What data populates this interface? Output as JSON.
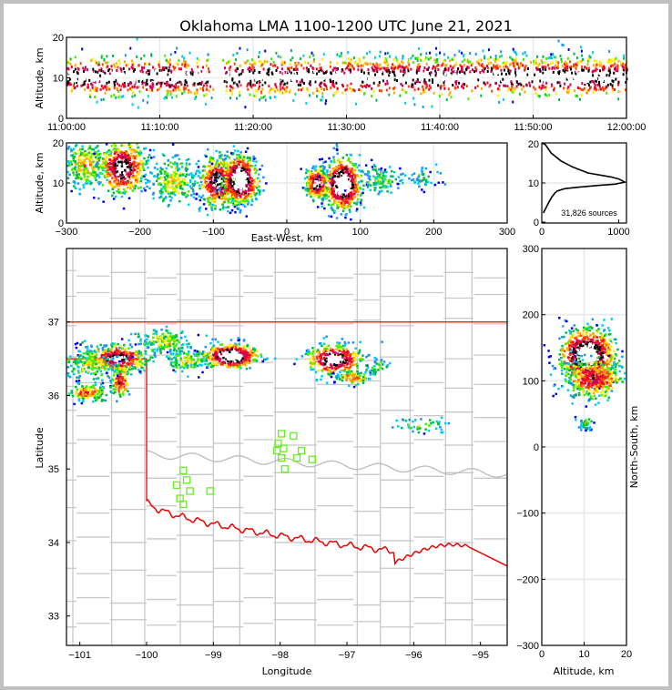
{
  "title": "Oklahoma LMA 1100-1200 UTC June 21, 2021",
  "colors": {
    "border": "#ee0000",
    "county": "#c8c8c8",
    "station": "#66ee22",
    "grid": "#e8e8e8"
  },
  "chart_data": [
    {
      "id": "time-height",
      "type": "scatter",
      "xlabel": "",
      "ylabel": "Altitude, km",
      "x_ticks": [
        "11:00:00",
        "11:10:00",
        "11:20:00",
        "11:30:00",
        "11:40:00",
        "11:50:00",
        "12:00:00"
      ],
      "xlim_minutes": [
        0,
        60
      ],
      "ylim": [
        0,
        20
      ],
      "y_ticks": [
        "0",
        "10",
        "20"
      ],
      "note": "Source density by time; main band near 10 km altitude, gap near 11:15-11:17"
    },
    {
      "id": "ew-altitude",
      "type": "scatter",
      "xlabel": "East-West, km",
      "ylabel": "Altitude, km",
      "xlim": [
        -300,
        300
      ],
      "ylim": [
        0,
        20
      ],
      "x_ticks": [
        "−300",
        "−200",
        "−100",
        "0",
        "100",
        "200",
        "300"
      ],
      "y_ticks": [
        "0",
        "10",
        "20"
      ],
      "clusters": [
        {
          "x": -275,
          "y": 15,
          "sx": 14,
          "sy": 3,
          "n": 260,
          "peak": 0.4
        },
        {
          "x": -225,
          "y": 14,
          "sx": 16,
          "sy": 3.2,
          "n": 520,
          "peak": 0.8
        },
        {
          "x": -155,
          "y": 11,
          "sx": 16,
          "sy": 3,
          "n": 260,
          "peak": 0.3
        },
        {
          "x": -95,
          "y": 10.5,
          "sx": 13,
          "sy": 3,
          "n": 500,
          "peak": 0.8
        },
        {
          "x": -65,
          "y": 11,
          "sx": 12,
          "sy": 3,
          "n": 600,
          "peak": 1
        },
        {
          "x": 40,
          "y": 10,
          "sx": 8,
          "sy": 2,
          "n": 300,
          "peak": 0.8
        },
        {
          "x": 75,
          "y": 10,
          "sx": 12,
          "sy": 3.2,
          "n": 600,
          "peak": 1
        },
        {
          "x": 125,
          "y": 11,
          "sx": 15,
          "sy": 1.5,
          "n": 120,
          "peak": 0.2
        },
        {
          "x": 180,
          "y": 11.5,
          "sx": 15,
          "sy": 1.2,
          "n": 50,
          "peak": 0.1
        }
      ]
    },
    {
      "id": "altitude-histogram",
      "type": "line",
      "xlim": [
        0,
        1100
      ],
      "ylim": [
        0,
        20
      ],
      "x_ticks": [
        "0",
        "1000"
      ],
      "y_ticks": [
        "0",
        "10",
        "20"
      ],
      "annotation": "31,826 sources",
      "x": [
        20,
        60,
        100,
        130,
        150,
        170,
        200,
        300,
        500,
        750,
        950,
        1080,
        1000,
        900,
        600,
        400,
        250,
        120,
        50,
        10
      ],
      "y": [
        2.5,
        4,
        5.5,
        6.5,
        7,
        7.5,
        8,
        8.6,
        9,
        9.4,
        9.7,
        10.2,
        11,
        11.5,
        12.5,
        14,
        15.5,
        17.5,
        19.5,
        20
      ]
    },
    {
      "id": "map",
      "type": "scatter",
      "xlabel": "Longitude",
      "ylabel": "Latitude",
      "xlim": [
        -101.2,
        -94.6
      ],
      "ylim": [
        32.6,
        38.0
      ],
      "x_ticks": [
        "−101",
        "−100",
        "−99",
        "−98",
        "−97",
        "−96",
        "−95"
      ],
      "y_ticks": [
        "33",
        "34",
        "35",
        "36",
        "37"
      ],
      "stations": [
        [
          -99.55,
          34.78
        ],
        [
          -99.45,
          34.98
        ],
        [
          -99.4,
          34.85
        ],
        [
          -99.35,
          34.7
        ],
        [
          -99.5,
          34.6
        ],
        [
          -99.45,
          34.52
        ],
        [
          -99.05,
          34.7
        ],
        [
          -97.98,
          35.48
        ],
        [
          -97.8,
          35.45
        ],
        [
          -98.03,
          35.35
        ],
        [
          -97.95,
          35.28
        ],
        [
          -98.05,
          35.25
        ],
        [
          -97.68,
          35.25
        ],
        [
          -97.98,
          35.15
        ],
        [
          -97.75,
          35.15
        ],
        [
          -97.52,
          35.13
        ],
        [
          -97.93,
          35.0
        ]
      ],
      "clusters": [
        {
          "x": -100.45,
          "y": 36.52,
          "sx": 0.22,
          "sy": 0.09,
          "n": 420,
          "peak": 0.8
        },
        {
          "x": -100.85,
          "y": 36.45,
          "sx": 0.18,
          "sy": 0.12,
          "n": 160,
          "peak": 0.3
        },
        {
          "x": -100.9,
          "y": 36.05,
          "sx": 0.15,
          "sy": 0.06,
          "n": 140,
          "peak": 0.5
        },
        {
          "x": -100.4,
          "y": 36.2,
          "sx": 0.07,
          "sy": 0.12,
          "n": 110,
          "peak": 0.6
        },
        {
          "x": -99.75,
          "y": 36.75,
          "sx": 0.2,
          "sy": 0.08,
          "n": 170,
          "peak": 0.3
        },
        {
          "x": -99.4,
          "y": 36.5,
          "sx": 0.15,
          "sy": 0.08,
          "n": 140,
          "peak": 0.3
        },
        {
          "x": -98.75,
          "y": 36.55,
          "sx": 0.2,
          "sy": 0.08,
          "n": 480,
          "peak": 1
        },
        {
          "x": -97.2,
          "y": 36.5,
          "sx": 0.2,
          "sy": 0.1,
          "n": 420,
          "peak": 0.9
        },
        {
          "x": -96.92,
          "y": 36.25,
          "sx": 0.12,
          "sy": 0.05,
          "n": 90,
          "peak": 0.5
        },
        {
          "x": -96.55,
          "y": 36.4,
          "sx": 0.1,
          "sy": 0.05,
          "n": 40,
          "peak": 0.2
        },
        {
          "x": -95.9,
          "y": 35.6,
          "sx": 0.2,
          "sy": 0.05,
          "n": 45,
          "peak": 0.2
        }
      ]
    },
    {
      "id": "altitude-ns",
      "type": "scatter",
      "xlabel": "Altitude, km",
      "ylabel": "North-South, km",
      "xlim": [
        0,
        20
      ],
      "ylim": [
        -300,
        300
      ],
      "x_ticks": [
        "0",
        "10",
        "20"
      ],
      "y_ticks": [
        "−300",
        "−200",
        "−100",
        "0",
        "100",
        "200",
        "300"
      ],
      "clusters": [
        {
          "x": 10.5,
          "y": 140,
          "sx": 3.2,
          "sy": 20,
          "n": 900,
          "peak": 1
        },
        {
          "x": 12,
          "y": 105,
          "sx": 3.5,
          "sy": 15,
          "n": 400,
          "peak": 0.6
        },
        {
          "x": 10,
          "y": 37,
          "sx": 1,
          "sy": 5,
          "n": 40,
          "peak": 0.2
        }
      ]
    }
  ]
}
